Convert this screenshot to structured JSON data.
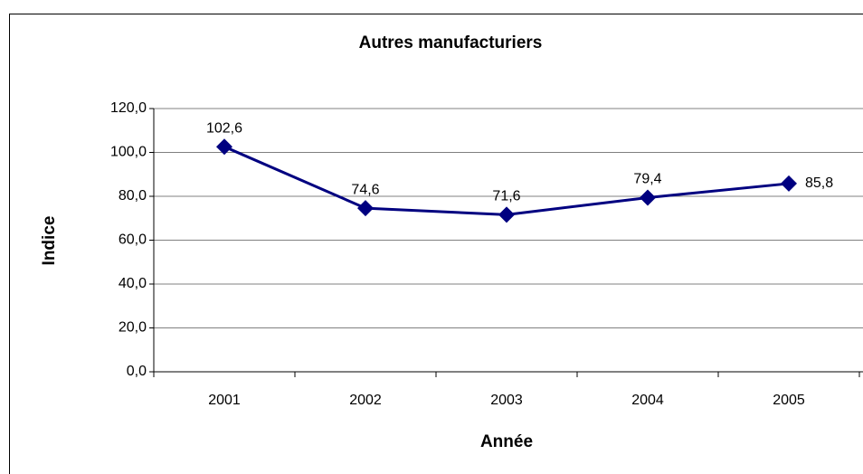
{
  "chart_data": {
    "type": "line",
    "title": "Autres manufacturiers",
    "x_label": "Année",
    "y_label": "Indice",
    "categories": [
      "2001",
      "2002",
      "2003",
      "2004",
      "2005"
    ],
    "series": [
      {
        "name": "Autres manufacturiers",
        "color": "#000080",
        "values": [
          102.6,
          74.6,
          71.6,
          79.4,
          85.8
        ],
        "value_labels": [
          "102,6",
          "74,6",
          "71,6",
          "79,4",
          "85,8"
        ]
      }
    ],
    "ylim": [
      0,
      120
    ],
    "yticks": [
      {
        "value": 0,
        "label": "0,0"
      },
      {
        "value": 20,
        "label": "20,0"
      },
      {
        "value": 40,
        "label": "40,0"
      },
      {
        "value": 60,
        "label": "60,0"
      },
      {
        "value": 80,
        "label": "80,0"
      },
      {
        "value": 100,
        "label": "100,0"
      },
      {
        "value": 120,
        "label": "120,0"
      }
    ],
    "grid": true
  }
}
